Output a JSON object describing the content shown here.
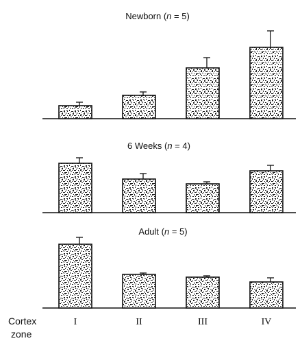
{
  "chart_data": {
    "type": "bar",
    "categories": [
      "I",
      "II",
      "III",
      "IV"
    ],
    "xlabel_line1": "Cortex",
    "xlabel_line2": "zone",
    "panels": [
      {
        "title_prefix": "Newborn (",
        "title_var": "n",
        "title_suffix": " = 5)",
        "values": [
          19,
          34,
          74,
          104
        ],
        "errors": [
          5,
          5,
          15,
          24
        ],
        "ylim": [
          0,
          130
        ]
      },
      {
        "title_prefix": "6 Weeks (",
        "title_var": "n",
        "title_suffix": " = 4)",
        "values": [
          72,
          49,
          42,
          61
        ],
        "errors": [
          8,
          8,
          3,
          8
        ],
        "ylim": [
          0,
          100
        ]
      },
      {
        "title_prefix": "Adult (",
        "title_var": "n",
        "title_suffix": " = 5)",
        "values": [
          93,
          49,
          45,
          38
        ],
        "errors": [
          10,
          2,
          2,
          6
        ],
        "ylim": [
          0,
          115
        ]
      }
    ],
    "grid": false,
    "legend": "none"
  }
}
